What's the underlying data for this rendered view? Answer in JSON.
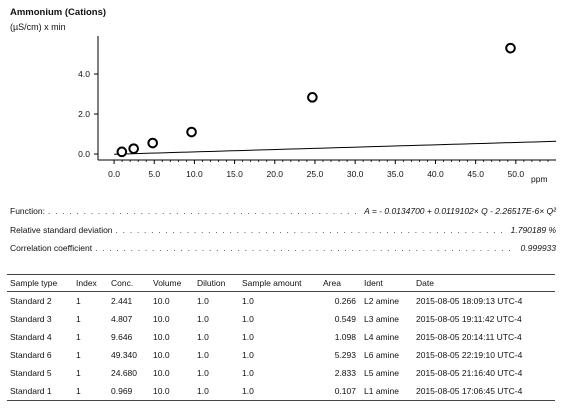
{
  "chart_data": {
    "type": "scatter",
    "title": "Ammonium (Cations)",
    "ylabel": "(µS/cm) x min",
    "xlabel": "ppm",
    "xlim": [
      -2,
      55
    ],
    "ylim": [
      -0.3,
      5.9
    ],
    "x_ticks": [
      "0.0",
      "5.0",
      "10.0",
      "15.0",
      "20.0",
      "25.0",
      "30.0",
      "35.0",
      "40.0",
      "45.0",
      "50.0"
    ],
    "y_ticks": [
      "0.0",
      "2.0",
      "4.0"
    ],
    "points": [
      {
        "x": 0.969,
        "y": 0.107
      },
      {
        "x": 2.441,
        "y": 0.266
      },
      {
        "x": 4.807,
        "y": 0.549
      },
      {
        "x": 9.646,
        "y": 1.098
      },
      {
        "x": 24.68,
        "y": 2.833
      },
      {
        "x": 49.34,
        "y": 5.293
      }
    ],
    "fit": {
      "a0": -0.01347,
      "a1": 0.0119102,
      "a2": -2.26517e-06,
      "x_range": [
        0,
        55
      ]
    }
  },
  "stats": [
    {
      "label": "Function:",
      "value": "A = - 0.0134700 + 0.0119102× Q - 2.26517E-6× Q²"
    },
    {
      "label": "Relative standard deviation",
      "value": "1.790189 %"
    },
    {
      "label": "Correlation coefficient",
      "value": "0.999933"
    }
  ],
  "table": {
    "headers": [
      "Sample type",
      "Index",
      "Conc.",
      "Volume",
      "Dilution",
      "Sample amount",
      "Area",
      "Ident",
      "Date"
    ],
    "rows": [
      [
        "Standard 2",
        "1",
        "2.441",
        "10.0",
        "1.0",
        "1.0",
        "0.266",
        "L2 amine",
        "2015-08-05 18:09:13 UTC-4"
      ],
      [
        "Standard 3",
        "1",
        "4.807",
        "10.0",
        "1.0",
        "1.0",
        "0.549",
        "L3 amine",
        "2015-08-05 19:11:42 UTC-4"
      ],
      [
        "Standard 4",
        "1",
        "9.646",
        "10.0",
        "1.0",
        "1.0",
        "1.098",
        "L4 amine",
        "2015-08-05 20:14:11 UTC-4"
      ],
      [
        "Standard 6",
        "1",
        "49.340",
        "10.0",
        "1.0",
        "1.0",
        "5.293",
        "L6 amine",
        "2015-08-05 22:19:10 UTC-4"
      ],
      [
        "Standard 5",
        "1",
        "24.680",
        "10.0",
        "1.0",
        "1.0",
        "2.833",
        "L5 amine",
        "2015-08-05 21:16:40 UTC-4"
      ],
      [
        "Standard 1",
        "1",
        "0.969",
        "10.0",
        "1.0",
        "1.0",
        "0.107",
        "L1 amine",
        "2015-08-05 17:06:45 UTC-4"
      ]
    ]
  }
}
